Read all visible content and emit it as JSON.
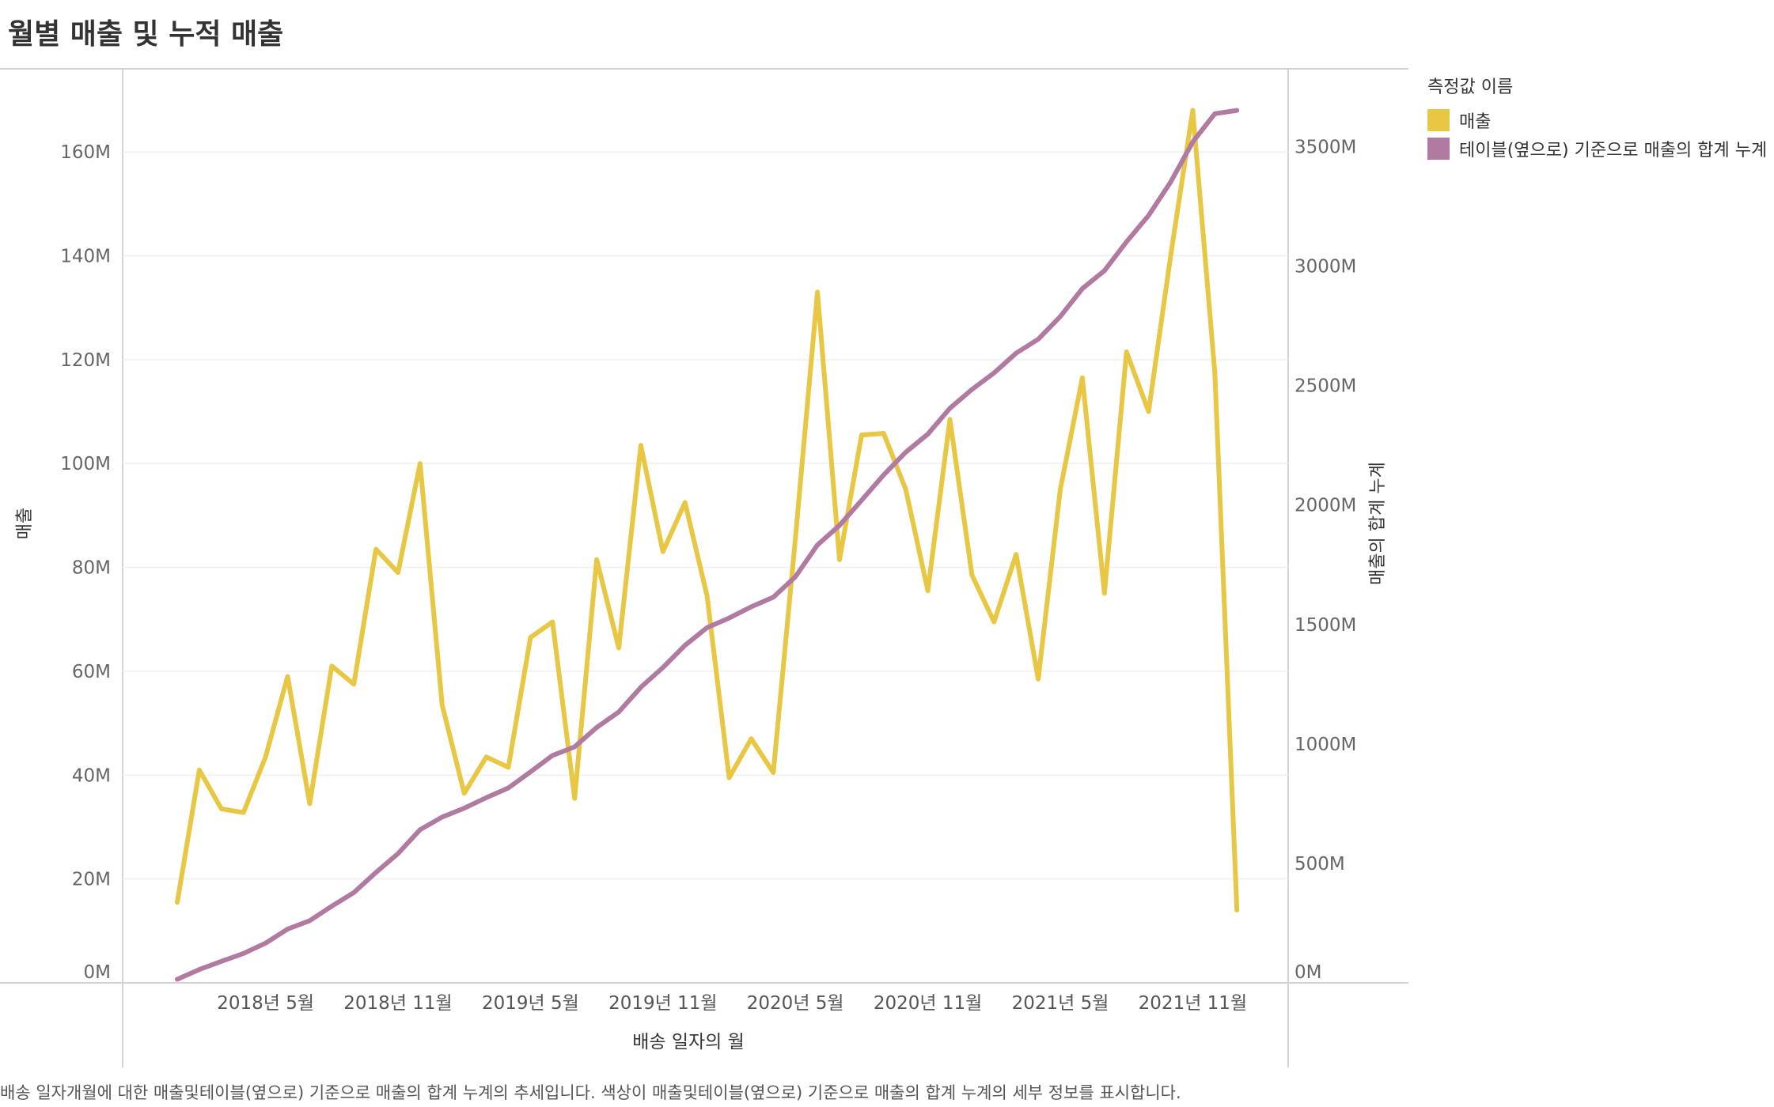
{
  "title": "월별 매출 및 누적 매출",
  "caption": "배송 일자개월에 대한 매출및테이블(옆으로) 기준으로 매출의 합계 누계의 추세입니다. 색상이 매출및테이블(옆으로) 기준으로 매출의 합계 누계의 세부 정보를 표시합니다.",
  "legend": {
    "title": "측정값 이름",
    "items": [
      {
        "label": "매출",
        "color": "#E8C744"
      },
      {
        "label": "테이블(옆으로) 기준으로 매출의 합계 누계",
        "color": "#B07AA1"
      }
    ]
  },
  "chart_data": {
    "type": "line",
    "title": "월별 매출 및 누적 매출",
    "xlabel": "배송 일자의 월",
    "ylabel_left": "매출",
    "ylabel_right": "매출의 합계 누계",
    "x_tick_labels": [
      "2018년 5월",
      "2018년 11월",
      "2019년 5월",
      "2019년 11월",
      "2020년 5월",
      "2020년 11월",
      "2021년 5월",
      "2021년 11월"
    ],
    "x_tick_index": [
      4,
      10,
      16,
      22,
      28,
      34,
      40,
      46
    ],
    "y_left_ticks": [
      "0M",
      "20M",
      "40M",
      "60M",
      "80M",
      "100M",
      "120M",
      "140M",
      "160M"
    ],
    "y_left_range": [
      0,
      176
    ],
    "y_right_ticks": [
      "0M",
      "500M",
      "1000M",
      "1500M",
      "2000M",
      "2500M",
      "3000M",
      "3500M"
    ],
    "y_right_range": [
      0,
      3826
    ],
    "grid": true,
    "legend_position": "right",
    "categories": [
      "2018-01",
      "2018-02",
      "2018-03",
      "2018-04",
      "2018-05",
      "2018-06",
      "2018-07",
      "2018-08",
      "2018-09",
      "2018-10",
      "2018-11",
      "2018-12",
      "2019-01",
      "2019-02",
      "2019-03",
      "2019-04",
      "2019-05",
      "2019-06",
      "2019-07",
      "2019-08",
      "2019-09",
      "2019-10",
      "2019-11",
      "2019-12",
      "2020-01",
      "2020-02",
      "2020-03",
      "2020-04",
      "2020-05",
      "2020-06",
      "2020-07",
      "2020-08",
      "2020-09",
      "2020-10",
      "2020-11",
      "2020-12",
      "2021-01",
      "2021-02",
      "2021-03",
      "2021-04",
      "2021-05",
      "2021-06",
      "2021-07",
      "2021-08",
      "2021-09",
      "2021-10",
      "2021-11",
      "2021-12",
      "2022-01"
    ],
    "series": [
      {
        "name": "매출",
        "axis": "left",
        "color": "#E8C744",
        "values": [
          15.5,
          41,
          33.5,
          32.8,
          43.5,
          59,
          34.5,
          61,
          57.5,
          83.5,
          79,
          100,
          53.5,
          36.5,
          43.5,
          41.5,
          66.5,
          69.5,
          35.5,
          81.5,
          64.5,
          103.5,
          83,
          92.5,
          74.5,
          39.5,
          47,
          40.5,
          85.5,
          133,
          81.5,
          105.5,
          105.8,
          95,
          75.5,
          108.5,
          78.5,
          69.5,
          82.5,
          58.5,
          95,
          116.5,
          75,
          121.5,
          110,
          140,
          168,
          117.5,
          14
        ]
      },
      {
        "name": "테이블(옆으로) 기준으로 매출의 합계 누계",
        "axis": "right",
        "color": "#B07AA1",
        "values": [
          15,
          56,
          90,
          123,
          166,
          225,
          260,
          321,
          378,
          462,
          541,
          641,
          694,
          731,
          775,
          816,
          883,
          952,
          988,
          1069,
          1134,
          1237,
          1320,
          1413,
          1487,
          1527,
          1574,
          1614,
          1700,
          1833,
          1915,
          2020,
          2126,
          2221,
          2297,
          2405,
          2484,
          2553,
          2636,
          2694,
          2789,
          2906,
          2981,
          3102,
          3212,
          3352,
          3520,
          3638,
          3652
        ]
      }
    ]
  }
}
